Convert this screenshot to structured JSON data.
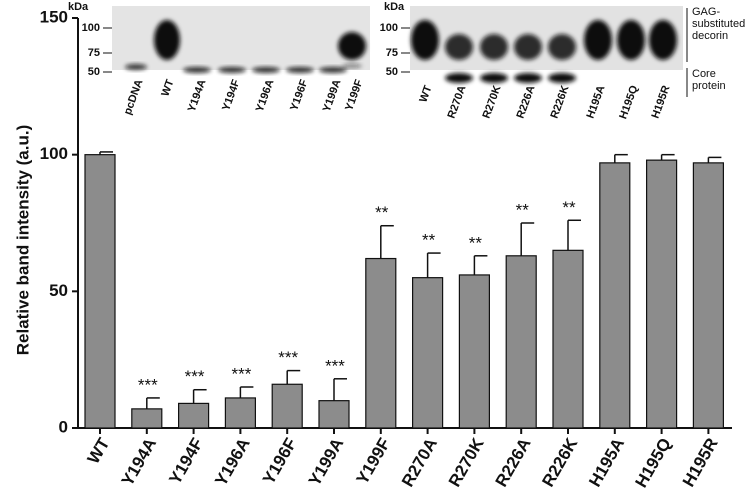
{
  "chart_data": {
    "type": "bar",
    "y_label": "Relative band intensity (a.u.)",
    "categories": [
      "WT",
      "Y194A",
      "Y194F",
      "Y196A",
      "Y196F",
      "Y199A",
      "Y199F",
      "R270A",
      "R270K",
      "R226A",
      "R226K",
      "H195A",
      "H195Q",
      "H195R"
    ],
    "values": [
      100,
      7,
      9,
      11,
      16,
      10,
      62,
      55,
      56,
      63,
      65,
      97,
      98,
      97
    ],
    "errors": [
      1,
      4,
      5,
      4,
      5,
      8,
      12,
      9,
      7,
      12,
      11,
      3,
      2,
      2
    ],
    "annotations": [
      null,
      "***",
      "***",
      "***",
      "***",
      "***",
      "**",
      "**",
      "**",
      "**",
      "**",
      null,
      null,
      null
    ],
    "color": "#8c8c8c",
    "ylim": [
      0,
      150
    ],
    "yticks": [
      0,
      50,
      100,
      150
    ]
  },
  "insets": [
    {
      "unit": "kDa",
      "markers": [
        "100",
        "75",
        "50"
      ],
      "lanes": [
        "pcDNA",
        "WT",
        "Y194A",
        "Y194F",
        "Y196A",
        "Y196F",
        "Y199A",
        "Y199F"
      ]
    },
    {
      "unit": "kDa",
      "markers": [
        "100",
        "75",
        "50"
      ],
      "lanes": [
        "WT",
        "R270A",
        "R270K",
        "R226A",
        "R226K",
        "H195A",
        "H195Q",
        "H195R"
      ],
      "band_labels": [
        [
          "GAG-",
          "substituted",
          "decorin"
        ],
        [
          "Core",
          "protein"
        ]
      ]
    }
  ]
}
